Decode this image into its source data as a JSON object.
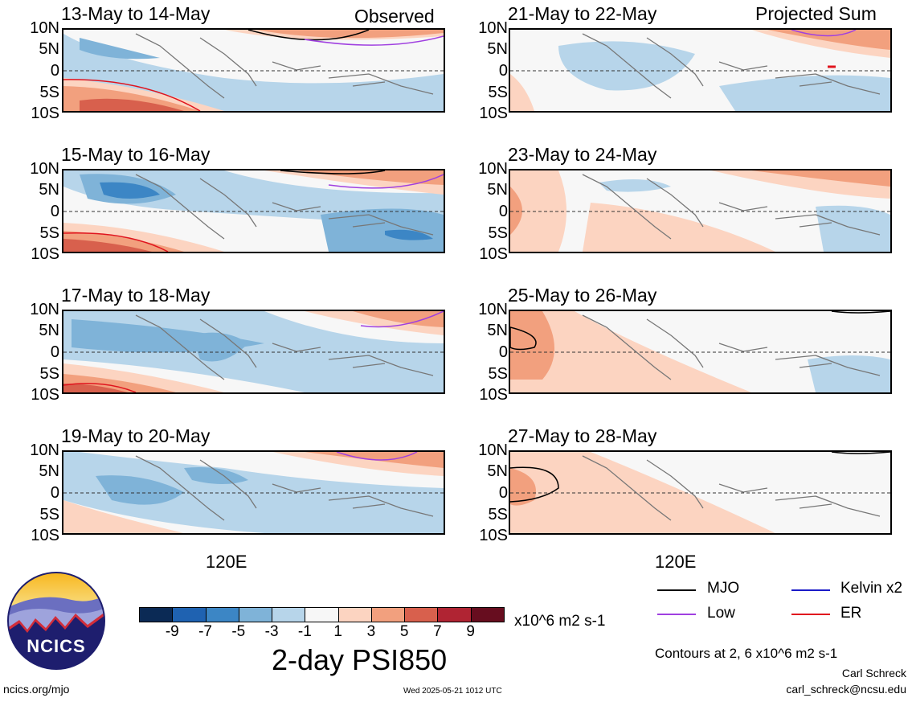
{
  "titles": {
    "observed": "Observed",
    "projected": "Projected Sum"
  },
  "panels": {
    "left": [
      {
        "date": "13-May to 14-May"
      },
      {
        "date": "15-May to 16-May"
      },
      {
        "date": "17-May to 18-May"
      },
      {
        "date": "19-May to 20-May"
      }
    ],
    "right": [
      {
        "date": "21-May to 22-May"
      },
      {
        "date": "23-May to 24-May"
      },
      {
        "date": "25-May to 26-May"
      },
      {
        "date": "27-May to 28-May"
      }
    ]
  },
  "axes": {
    "lat_labels": [
      "10N",
      "5N",
      "0",
      "5S",
      "10S"
    ],
    "lon_label": "120E"
  },
  "colorbar": {
    "colors": [
      "#0b2a55",
      "#1f62b1",
      "#3c86c5",
      "#7fb3d8",
      "#b7d5ea",
      "#f7f7f7",
      "#fcd4c1",
      "#f2a07e",
      "#d8604d",
      "#b02433",
      "#670d1f"
    ],
    "labels": [
      "-9",
      "-7",
      "-5",
      "-3",
      "-1",
      "1",
      "3",
      "5",
      "7",
      "9"
    ],
    "units": "x10^6 m2 s-1",
    "title": "2-day PSI850"
  },
  "legend": {
    "items": [
      {
        "label": "MJO",
        "color": "#000000"
      },
      {
        "label": "Kelvin x2",
        "color": "#1a1ac8"
      },
      {
        "label": "Low",
        "color": "#a040e0"
      },
      {
        "label": "ER",
        "color": "#e0141e"
      }
    ],
    "contours_note": "Contours at 2, 6 x10^6 m2 s-1"
  },
  "credits": {
    "author": "Carl Schreck",
    "email": "carl_schreck@ncsu.edu",
    "url": "ncics.org/mjo",
    "timestamp": "Wed 2025-05-21 1012 UTC",
    "logo_text": "NCICS"
  }
}
